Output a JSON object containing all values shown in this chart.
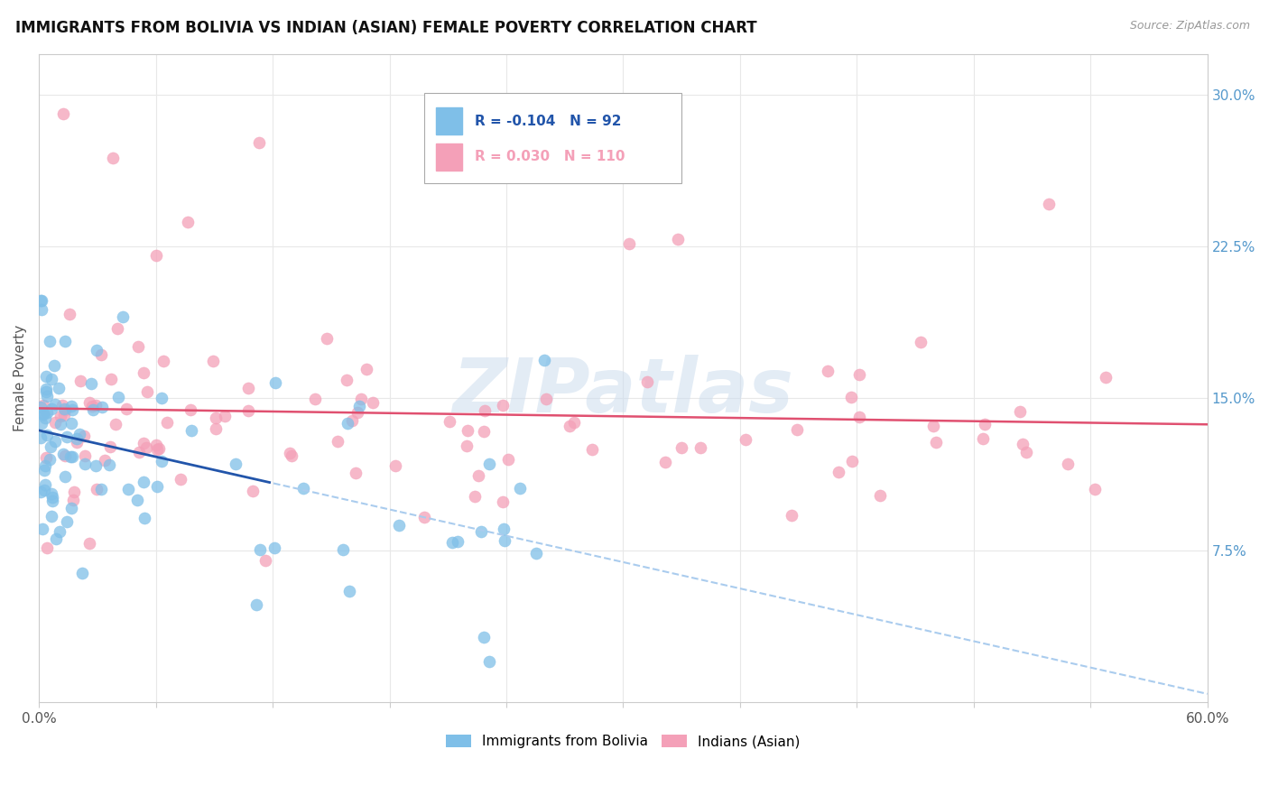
{
  "title": "IMMIGRANTS FROM BOLIVIA VS INDIAN (ASIAN) FEMALE POVERTY CORRELATION CHART",
  "source_text": "Source: ZipAtlas.com",
  "ylabel": "Female Poverty",
  "yticks": [
    "7.5%",
    "15.0%",
    "22.5%",
    "30.0%"
  ],
  "ytick_vals": [
    0.075,
    0.15,
    0.225,
    0.3
  ],
  "legend1_label": "Immigrants from Bolivia",
  "legend2_label": "Indians (Asian)",
  "r1": -0.104,
  "n1": 92,
  "r2": 0.03,
  "n2": 110,
  "blue_color": "#7fbfe8",
  "pink_color": "#f4a0b8",
  "trendline1_solid_color": "#2255aa",
  "trendline1_dash_color": "#aaccee",
  "trendline2_color": "#e05070",
  "watermark": "ZIPatlas",
  "seed": 42,
  "xlim": [
    0.0,
    0.6
  ],
  "ylim": [
    0.0,
    0.32
  ],
  "grid_color": "#e8e8e8",
  "ytick_color": "#5599cc"
}
